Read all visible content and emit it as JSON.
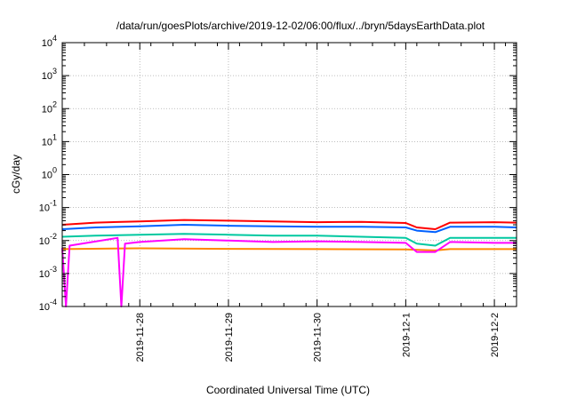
{
  "chart_data": {
    "type": "line",
    "title": "/data/run/goesPlots/archive/2019-12-02/06:00/flux/../bryn/5daysEarthData.plot",
    "xlabel": "Coordinated Universal Time (UTC)",
    "ylabel": "cGy/day",
    "yscale": "log",
    "ylim": [
      0.0001,
      10000
    ],
    "y_ticks": [
      {
        "exp": -4,
        "base": "10",
        "sup": "-4"
      },
      {
        "exp": -3,
        "base": "10",
        "sup": "-3"
      },
      {
        "exp": -2,
        "base": "10",
        "sup": "-2"
      },
      {
        "exp": -1,
        "base": "10",
        "sup": "-1"
      },
      {
        "exp": 0,
        "base": "10",
        "sup": "0"
      },
      {
        "exp": 1,
        "base": "10",
        "sup": "1"
      },
      {
        "exp": 2,
        "base": "10",
        "sup": "2"
      },
      {
        "exp": 3,
        "base": "10",
        "sup": "3"
      },
      {
        "exp": 4,
        "base": "10",
        "sup": "4"
      }
    ],
    "x_range": [
      "2019-11-27T03:00",
      "2019-12-02T06:00"
    ],
    "x_ticks": [
      {
        "t": "2019-11-28T00:00",
        "label": "2019-11-28"
      },
      {
        "t": "2019-11-29T00:00",
        "label": "2019-11-29"
      },
      {
        "t": "2019-11-30T00:00",
        "label": "2019-11-30"
      },
      {
        "t": "2019-12-01T00:00",
        "label": "2019-12-1"
      },
      {
        "t": "2019-12-02T00:00",
        "label": "2019-12-2"
      }
    ],
    "grid": true,
    "series": [
      {
        "color": "#ff0000",
        "points": [
          [
            "2019-11-27T03:00",
            0.03
          ],
          [
            "2019-11-27T12:00",
            0.035
          ],
          [
            "2019-11-28T00:00",
            0.038
          ],
          [
            "2019-11-28T12:00",
            0.042
          ],
          [
            "2019-11-29T00:00",
            0.04
          ],
          [
            "2019-11-29T12:00",
            0.038
          ],
          [
            "2019-11-30T00:00",
            0.036
          ],
          [
            "2019-11-30T12:00",
            0.037
          ],
          [
            "2019-12-01T00:00",
            0.034
          ],
          [
            "2019-12-01T03:00",
            0.025
          ],
          [
            "2019-12-01T08:00",
            0.022
          ],
          [
            "2019-12-01T12:00",
            0.035
          ],
          [
            "2019-12-02T00:00",
            0.036
          ],
          [
            "2019-12-02T06:00",
            0.035
          ]
        ]
      },
      {
        "color": "#0060ff",
        "points": [
          [
            "2019-11-27T03:00",
            0.022
          ],
          [
            "2019-11-27T12:00",
            0.025
          ],
          [
            "2019-11-28T00:00",
            0.027
          ],
          [
            "2019-11-28T12:00",
            0.03
          ],
          [
            "2019-11-29T00:00",
            0.028
          ],
          [
            "2019-11-29T12:00",
            0.027
          ],
          [
            "2019-11-30T00:00",
            0.026
          ],
          [
            "2019-11-30T12:00",
            0.026
          ],
          [
            "2019-12-01T00:00",
            0.025
          ],
          [
            "2019-12-01T03:00",
            0.02
          ],
          [
            "2019-12-01T08:00",
            0.018
          ],
          [
            "2019-12-01T12:00",
            0.026
          ],
          [
            "2019-12-02T00:00",
            0.026
          ],
          [
            "2019-12-02T06:00",
            0.025
          ]
        ]
      },
      {
        "color": "#00c8a0",
        "points": [
          [
            "2019-11-27T03:00",
            0.013
          ],
          [
            "2019-11-27T12:00",
            0.014
          ],
          [
            "2019-11-28T00:00",
            0.015
          ],
          [
            "2019-11-28T12:00",
            0.016
          ],
          [
            "2019-11-29T00:00",
            0.015
          ],
          [
            "2019-11-29T12:00",
            0.014
          ],
          [
            "2019-11-30T00:00",
            0.014
          ],
          [
            "2019-11-30T12:00",
            0.013
          ],
          [
            "2019-12-01T00:00",
            0.012
          ],
          [
            "2019-12-01T03:00",
            0.008
          ],
          [
            "2019-12-01T08:00",
            0.007
          ],
          [
            "2019-12-01T12:00",
            0.012
          ],
          [
            "2019-12-02T00:00",
            0.012
          ],
          [
            "2019-12-02T06:00",
            0.012
          ]
        ]
      },
      {
        "color": "#ff8800",
        "points": [
          [
            "2019-11-27T03:00",
            0.0055
          ],
          [
            "2019-11-28T00:00",
            0.0058
          ],
          [
            "2019-11-29T00:00",
            0.0056
          ],
          [
            "2019-11-30T00:00",
            0.0055
          ],
          [
            "2019-12-01T00:00",
            0.0054
          ],
          [
            "2019-12-01T08:00",
            0.005
          ],
          [
            "2019-12-01T12:00",
            0.0055
          ],
          [
            "2019-12-02T06:00",
            0.0055
          ]
        ]
      },
      {
        "color": "#ff00ff",
        "points": [
          [
            "2019-11-27T03:00",
            0.006
          ],
          [
            "2019-11-27T04:00",
            0.0001
          ],
          [
            "2019-11-27T05:00",
            0.007
          ],
          [
            "2019-11-27T18:00",
            0.012
          ],
          [
            "2019-11-27T19:00",
            0.0001
          ],
          [
            "2019-11-27T20:00",
            0.008
          ],
          [
            "2019-11-28T00:00",
            0.009
          ],
          [
            "2019-11-28T12:00",
            0.011
          ],
          [
            "2019-11-29T00:00",
            0.01
          ],
          [
            "2019-11-29T12:00",
            0.009
          ],
          [
            "2019-11-30T00:00",
            0.0095
          ],
          [
            "2019-11-30T12:00",
            0.009
          ],
          [
            "2019-12-01T00:00",
            0.0085
          ],
          [
            "2019-12-01T03:00",
            0.0045
          ],
          [
            "2019-12-01T08:00",
            0.0045
          ],
          [
            "2019-12-01T12:00",
            0.009
          ],
          [
            "2019-12-02T00:00",
            0.0085
          ],
          [
            "2019-12-02T06:00",
            0.0085
          ]
        ]
      }
    ]
  }
}
